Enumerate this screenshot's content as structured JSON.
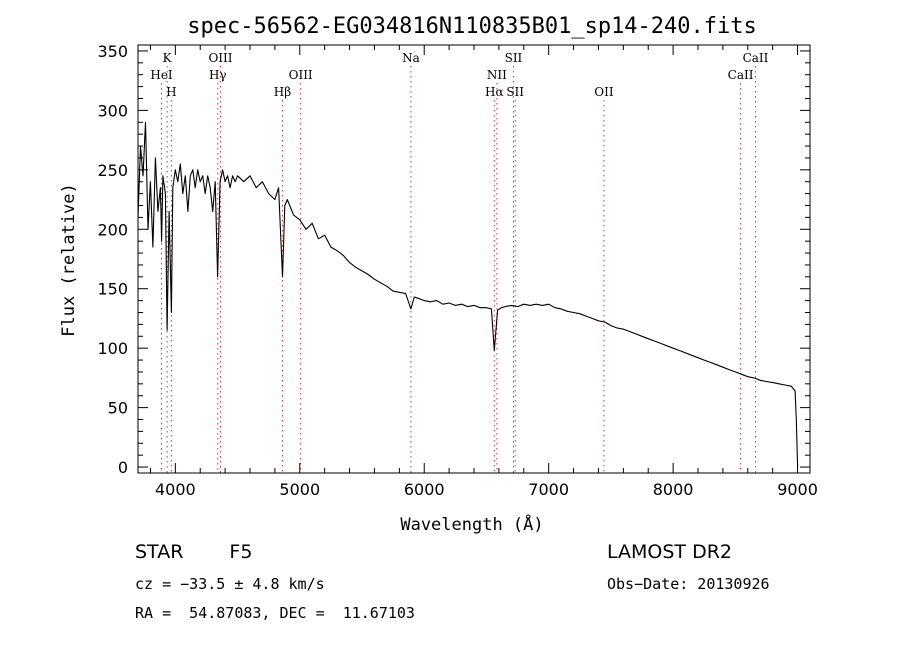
{
  "chart_data": {
    "type": "line",
    "title": "spec-56562-EG034816N110835B01_sp14-240.fits",
    "xlabel": "Wavelength (Å)",
    "ylabel": "Flux (relative)",
    "xlim": [
      3700,
      9100
    ],
    "ylim": [
      -5,
      355
    ],
    "x_ticks": [
      4000,
      5000,
      6000,
      7000,
      8000,
      9000
    ],
    "y_ticks": [
      0,
      50,
      100,
      150,
      200,
      250,
      300,
      350
    ],
    "grid": false,
    "series": [
      {
        "points": [
          [
            3700,
            210
          ],
          [
            3720,
            270
          ],
          [
            3740,
            245
          ],
          [
            3760,
            290
          ],
          [
            3780,
            200
          ],
          [
            3800,
            240
          ],
          [
            3820,
            185
          ],
          [
            3840,
            260
          ],
          [
            3860,
            215
          ],
          [
            3880,
            235
          ],
          [
            3890,
            190
          ],
          [
            3900,
            245
          ],
          [
            3920,
            230
          ],
          [
            3934,
            115
          ],
          [
            3950,
            215
          ],
          [
            3968,
            130
          ],
          [
            3980,
            235
          ],
          [
            4000,
            250
          ],
          [
            4020,
            240
          ],
          [
            4040,
            255
          ],
          [
            4060,
            230
          ],
          [
            4080,
            245
          ],
          [
            4101,
            215
          ],
          [
            4120,
            245
          ],
          [
            4140,
            250
          ],
          [
            4160,
            235
          ],
          [
            4180,
            250
          ],
          [
            4200,
            240
          ],
          [
            4220,
            245
          ],
          [
            4240,
            230
          ],
          [
            4260,
            245
          ],
          [
            4280,
            235
          ],
          [
            4300,
            215
          ],
          [
            4320,
            240
          ],
          [
            4340,
            160
          ],
          [
            4360,
            240
          ],
          [
            4380,
            250
          ],
          [
            4400,
            240
          ],
          [
            4420,
            245
          ],
          [
            4440,
            235
          ],
          [
            4460,
            245
          ],
          [
            4480,
            240
          ],
          [
            4500,
            245
          ],
          [
            4550,
            240
          ],
          [
            4600,
            245
          ],
          [
            4650,
            235
          ],
          [
            4700,
            240
          ],
          [
            4750,
            230
          ],
          [
            4800,
            225
          ],
          [
            4830,
            235
          ],
          [
            4861,
            160
          ],
          [
            4880,
            220
          ],
          [
            4900,
            225
          ],
          [
            4950,
            212
          ],
          [
            5000,
            208
          ],
          [
            5050,
            200
          ],
          [
            5100,
            205
          ],
          [
            5150,
            192
          ],
          [
            5200,
            195
          ],
          [
            5250,
            185
          ],
          [
            5300,
            182
          ],
          [
            5350,
            178
          ],
          [
            5400,
            172
          ],
          [
            5450,
            168
          ],
          [
            5500,
            165
          ],
          [
            5550,
            162
          ],
          [
            5600,
            158
          ],
          [
            5650,
            155
          ],
          [
            5700,
            152
          ],
          [
            5750,
            148
          ],
          [
            5800,
            147
          ],
          [
            5850,
            146
          ],
          [
            5893,
            133
          ],
          [
            5920,
            143
          ],
          [
            5950,
            142
          ],
          [
            6000,
            140
          ],
          [
            6050,
            139
          ],
          [
            6100,
            140
          ],
          [
            6150,
            137
          ],
          [
            6200,
            138
          ],
          [
            6250,
            136
          ],
          [
            6300,
            137
          ],
          [
            6350,
            135
          ],
          [
            6400,
            136
          ],
          [
            6450,
            134
          ],
          [
            6500,
            134
          ],
          [
            6540,
            133
          ],
          [
            6563,
            98
          ],
          [
            6590,
            132
          ],
          [
            6620,
            134
          ],
          [
            6650,
            135
          ],
          [
            6700,
            136
          ],
          [
            6750,
            135
          ],
          [
            6800,
            137
          ],
          [
            6850,
            136
          ],
          [
            6900,
            137
          ],
          [
            6950,
            136
          ],
          [
            7000,
            137
          ],
          [
            7050,
            134
          ],
          [
            7100,
            133
          ],
          [
            7150,
            131
          ],
          [
            7200,
            130
          ],
          [
            7250,
            129
          ],
          [
            7300,
            127
          ],
          [
            7350,
            125
          ],
          [
            7400,
            123
          ],
          [
            7450,
            122
          ],
          [
            7500,
            119
          ],
          [
            7550,
            117
          ],
          [
            7600,
            116
          ],
          [
            7650,
            114
          ],
          [
            7700,
            112
          ],
          [
            7750,
            110
          ],
          [
            7800,
            108
          ],
          [
            7850,
            106
          ],
          [
            7900,
            104
          ],
          [
            7950,
            102
          ],
          [
            8000,
            100
          ],
          [
            8050,
            98
          ],
          [
            8100,
            96
          ],
          [
            8150,
            94
          ],
          [
            8200,
            92
          ],
          [
            8250,
            90
          ],
          [
            8300,
            88
          ],
          [
            8350,
            86
          ],
          [
            8400,
            84
          ],
          [
            8450,
            82
          ],
          [
            8500,
            80
          ],
          [
            8550,
            78
          ],
          [
            8600,
            76
          ],
          [
            8650,
            75
          ],
          [
            8700,
            73
          ],
          [
            8750,
            72
          ],
          [
            8800,
            71
          ],
          [
            8850,
            70
          ],
          [
            8900,
            69
          ],
          [
            8950,
            68
          ],
          [
            8980,
            64
          ],
          [
            8990,
            40
          ],
          [
            9000,
            0
          ]
        ]
      }
    ],
    "line_markers": [
      {
        "label": "K",
        "x": 3934,
        "row": 1
      },
      {
        "label": "H",
        "x": 3968,
        "row": 3
      },
      {
        "label": "HeI",
        "x": 3889,
        "row": 2
      },
      {
        "label": "OIII",
        "x": 4363,
        "row": 1
      },
      {
        "label": "Hγ",
        "x": 4341,
        "row": 2
      },
      {
        "label": "OIII",
        "x": 5007,
        "row": 2
      },
      {
        "label": "Hβ",
        "x": 4861,
        "row": 3
      },
      {
        "label": "Na",
        "x": 5893,
        "row": 1
      },
      {
        "label": "NII",
        "x": 6584,
        "row": 2
      },
      {
        "label": "SII",
        "x": 6717,
        "row": 1
      },
      {
        "label": "Hα",
        "x": 6563,
        "row": 3
      },
      {
        "label": "SII",
        "x": 6731,
        "row": 3
      },
      {
        "label": "OII",
        "x": 7444,
        "row": 3
      },
      {
        "label": "CaII",
        "x": 8662,
        "row": 1
      },
      {
        "label": "CaII",
        "x": 8542,
        "row": 2
      }
    ]
  },
  "footer": {
    "object_type": "STAR",
    "subclass": "F5",
    "survey": "LAMOST DR2",
    "redshift": "cz = −33.5 ± 4.8 km/s",
    "obs_date": "Obs−Date: 20130926",
    "coords": "RA =  54.87083, DEC =  11.67103"
  }
}
